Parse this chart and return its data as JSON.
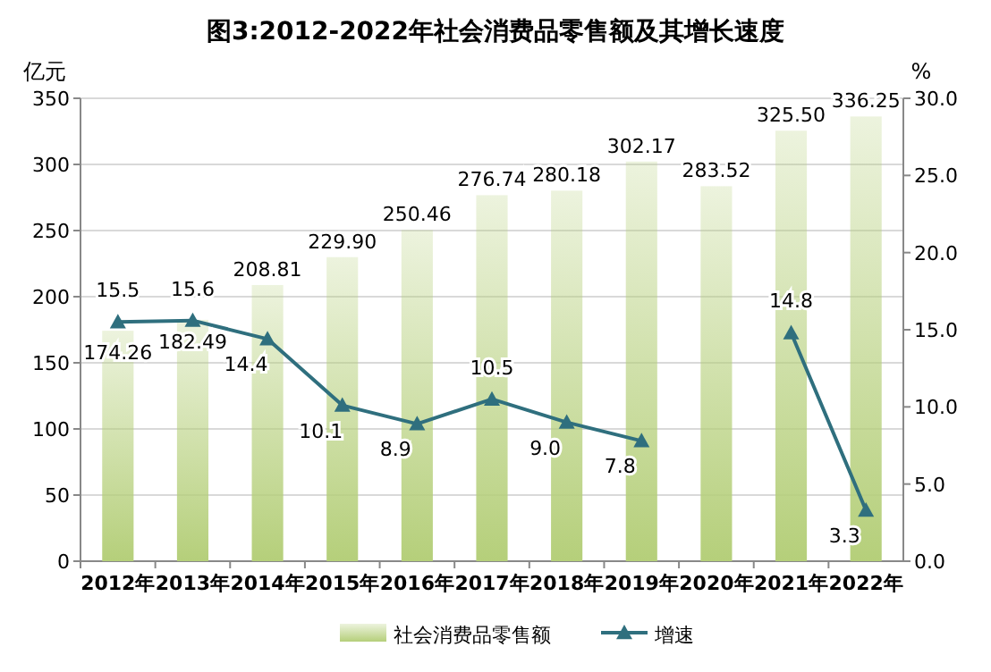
{
  "chart_data": {
    "type": "bar",
    "title": "图3:2012-2022年社会消费品零售额及其增长速度",
    "ylabel": "亿元",
    "y2label": "%",
    "categories": [
      "2012年",
      "2013年",
      "2014年",
      "2015年",
      "2016年",
      "2017年",
      "2018年",
      "2019年",
      "2020年",
      "2021年",
      "2022年"
    ],
    "series": [
      {
        "name": "社会消费品零售额",
        "color": "#b5cf7a",
        "values": [
          174.26,
          182.49,
          208.81,
          229.9,
          250.46,
          276.74,
          280.18,
          302.17,
          283.52,
          325.5,
          336.25
        ],
        "value_labels": [
          "174.26",
          "182.49",
          "208.81",
          "229.90",
          "250.46",
          "276.74",
          "280.18",
          "302.17",
          "283.52",
          "325.50",
          "336.25"
        ]
      },
      {
        "name": "增速",
        "type": "line",
        "axis": "y2",
        "color": "#2f6f7e",
        "marker": "triangle",
        "values": [
          15.5,
          15.6,
          14.4,
          10.1,
          8.9,
          10.5,
          9.0,
          7.8,
          null,
          14.8,
          3.3
        ],
        "value_labels": [
          "15.5",
          "15.6",
          "14.4",
          "10.1",
          "8.9",
          "10.5",
          "9.0",
          "7.8",
          null,
          "14.8",
          "3.3"
        ]
      }
    ],
    "ylim": [
      0,
      350
    ],
    "yticks": [
      0,
      50,
      100,
      150,
      200,
      250,
      300,
      350
    ],
    "y2lim": [
      0,
      30
    ],
    "y2ticks": [
      {
        "value": 0,
        "label": "0.0"
      },
      {
        "value": 5,
        "label": "5.0"
      },
      {
        "value": 10,
        "label": "10.0"
      },
      {
        "value": 15,
        "label": "15.0"
      },
      {
        "value": 20,
        "label": "20.0"
      },
      {
        "value": 25,
        "label": "25.0"
      },
      {
        "value": 30,
        "label": "30.0"
      }
    ],
    "grid": "y",
    "legend": "bottom"
  }
}
